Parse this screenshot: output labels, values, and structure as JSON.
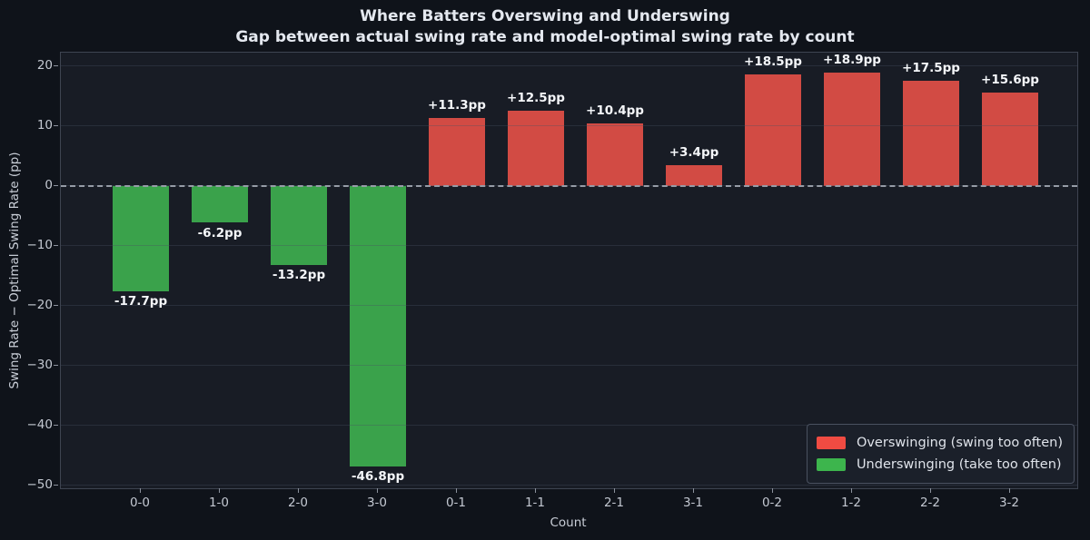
{
  "figure": {
    "title": "Where Batters Overswing and Underswing",
    "subtitle": "Gap between actual swing rate and model-optimal swing rate by count"
  },
  "chart_data": {
    "type": "bar",
    "title": "Where Batters Overswing and Underswing",
    "subtitle": "Gap between actual swing rate and model-optimal swing rate by count",
    "xlabel": "Count",
    "ylabel": "Swing Rate − Optimal Swing Rate (pp)",
    "categories": [
      "0-0",
      "1-0",
      "2-0",
      "3-0",
      "0-1",
      "1-1",
      "2-1",
      "3-1",
      "0-2",
      "1-2",
      "2-2",
      "3-2"
    ],
    "values": [
      -17.7,
      -6.2,
      -13.2,
      -46.8,
      11.3,
      12.5,
      10.4,
      3.4,
      18.5,
      18.9,
      17.5,
      15.6
    ],
    "bar_labels": [
      "-17.7pp",
      "-6.2pp",
      "-13.2pp",
      "-46.8pp",
      "+11.3pp",
      "+12.5pp",
      "+10.4pp",
      "+3.4pp",
      "+18.5pp",
      "+18.9pp",
      "+17.5pp",
      "+15.6pp"
    ],
    "ylim": [
      -50.5,
      22.2
    ],
    "yticks": [
      20,
      10,
      0,
      -10,
      -20,
      -30,
      -40,
      -50
    ],
    "ytick_labels": [
      "20",
      "10",
      "0",
      "−10",
      "−20",
      "−30",
      "−40",
      "−50"
    ],
    "grid": true,
    "zero_line": "dashed",
    "colors": {
      "overswing_bar": "#d24b44",
      "underswing_bar": "#3aa24b",
      "overswing_legend": "#f04b42",
      "underswing_legend": "#3db54d",
      "background": "#0f131a",
      "plot_background": "#181c25"
    },
    "legend": {
      "position": "lower right",
      "entries": [
        {
          "label": "Overswinging (swing too often)",
          "color": "#f04b42",
          "key": "overswing"
        },
        {
          "label": "Underswinging (take too often)",
          "color": "#3db54d",
          "key": "underswing"
        }
      ]
    }
  }
}
